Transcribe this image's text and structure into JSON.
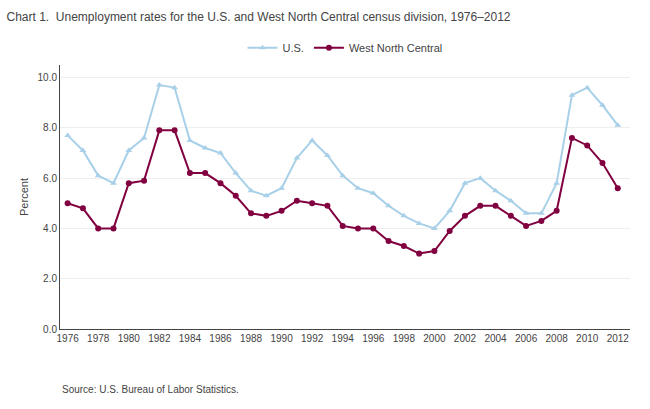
{
  "chart_data": {
    "type": "line",
    "title": "Chart 1.  Unemployment rates for the U.S. and West North Central census division, 1976–2012",
    "y_label": "Percent",
    "annotations": [
      "Source: U.S. Bureau of Labor Statistics."
    ],
    "x": [
      1976,
      1977,
      1978,
      1979,
      1980,
      1981,
      1982,
      1983,
      1984,
      1985,
      1986,
      1987,
      1988,
      1989,
      1990,
      1991,
      1992,
      1993,
      1994,
      1995,
      1996,
      1997,
      1998,
      1999,
      2000,
      2001,
      2002,
      2003,
      2004,
      2005,
      2006,
      2007,
      2008,
      2009,
      2010,
      2011,
      2012
    ],
    "series": [
      {
        "name": "U.S.",
        "color": "#a8d0e8",
        "marker": "triangle",
        "values": [
          7.7,
          7.1,
          6.1,
          5.8,
          7.1,
          7.6,
          9.7,
          9.6,
          7.5,
          7.2,
          7.0,
          6.2,
          5.5,
          5.3,
          5.6,
          6.8,
          7.5,
          6.9,
          6.1,
          5.6,
          5.4,
          4.9,
          4.5,
          4.2,
          4.0,
          4.7,
          5.8,
          6.0,
          5.5,
          5.1,
          4.6,
          4.6,
          5.8,
          9.3,
          9.6,
          8.9,
          8.1
        ]
      },
      {
        "name": "West North Central",
        "color": "#800040",
        "marker": "circle",
        "values": [
          5.0,
          4.8,
          4.0,
          4.0,
          5.8,
          5.9,
          7.9,
          7.9,
          6.2,
          6.2,
          5.8,
          5.3,
          4.6,
          4.5,
          4.7,
          5.1,
          5.0,
          4.9,
          4.1,
          4.0,
          4.0,
          3.5,
          3.3,
          3.0,
          3.1,
          3.9,
          4.5,
          4.9,
          4.9,
          4.5,
          4.1,
          4.3,
          4.7,
          7.6,
          7.3,
          6.6,
          5.6
        ]
      }
    ],
    "xlim": [
      1975.5,
      2012.8
    ],
    "xticks": [
      1976,
      1978,
      1980,
      1982,
      1984,
      1986,
      1988,
      1990,
      1992,
      1994,
      1996,
      1998,
      2000,
      2002,
      2004,
      2006,
      2008,
      2010,
      2012
    ],
    "ylim": [
      0.0,
      10.5
    ],
    "yticks": [
      {
        "value": 0.0,
        "label": "0.0"
      },
      {
        "value": 2.0,
        "label": "2.0"
      },
      {
        "value": 4.0,
        "label": "4.0"
      },
      {
        "value": 6.0,
        "label": "6.0"
      },
      {
        "value": 8.0,
        "label": "8.0"
      },
      {
        "value": 10.0,
        "label": "10.0"
      }
    ],
    "grid": true,
    "legend": "top"
  }
}
